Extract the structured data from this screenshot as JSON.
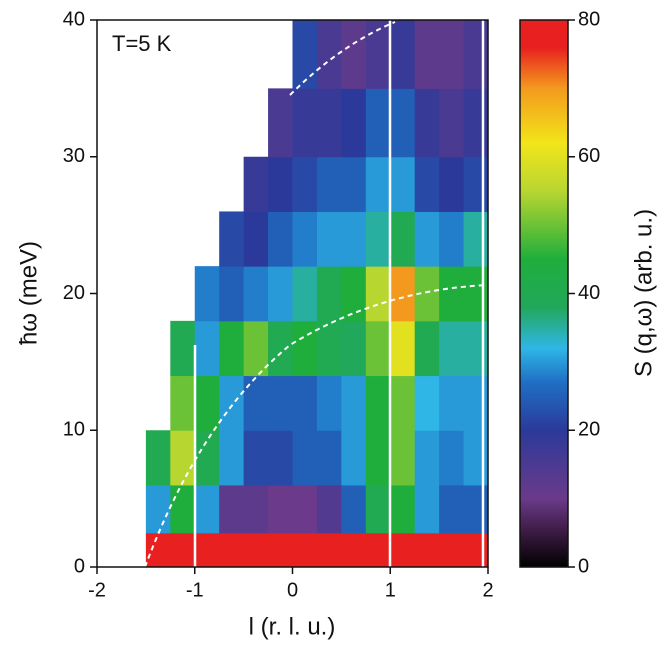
{
  "chart_data": {
    "type": "heatmap",
    "annotation": "T=5 K",
    "x_label": "l (r. l. u.)",
    "y_label": "ħω (meV)",
    "colorbar_label": "S (q,ω) (arb. u.)",
    "xlim": [
      -2,
      2
    ],
    "xticks": [
      -2,
      -1,
      0,
      1,
      2
    ],
    "ylim": [
      0,
      40
    ],
    "yticks": [
      0,
      10,
      20,
      30,
      40
    ],
    "clim": [
      0,
      80
    ],
    "cticks": [
      0,
      20,
      40,
      60,
      80
    ],
    "colorscale": [
      [
        0,
        "#000000"
      ],
      [
        5,
        "#3a1a40"
      ],
      [
        10,
        "#6b3a8a"
      ],
      [
        20,
        "#2b3a9a"
      ],
      [
        27,
        "#1f6fc4"
      ],
      [
        32,
        "#2fb6e6"
      ],
      [
        38,
        "#22a85a"
      ],
      [
        45,
        "#1fae3c"
      ],
      [
        55,
        "#b8d630"
      ],
      [
        62,
        "#f2e51a"
      ],
      [
        70,
        "#f39a1e"
      ],
      [
        76,
        "#e8201f"
      ],
      [
        80,
        "#e8201f"
      ]
    ],
    "xbins": [
      -1.75,
      -1.5,
      -1.25,
      -1,
      -0.75,
      -0.5,
      -0.25,
      0,
      0.25,
      0.5,
      0.75,
      1,
      1.25,
      1.5,
      1.75,
      2
    ],
    "ybins": [
      0,
      2.5,
      6,
      10,
      14,
      18,
      22,
      26,
      30,
      35,
      40
    ],
    "z": [
      [
        null,
        80,
        80,
        80,
        80,
        80,
        80,
        80,
        80,
        80,
        80,
        80,
        80,
        80,
        80
      ],
      [
        null,
        30,
        45,
        30,
        12,
        12,
        10,
        10,
        14,
        25,
        40,
        45,
        30,
        25,
        25
      ],
      [
        null,
        40,
        55,
        40,
        30,
        22,
        22,
        25,
        25,
        30,
        45,
        50,
        30,
        28,
        30
      ],
      [
        null,
        null,
        50,
        45,
        30,
        25,
        25,
        25,
        28,
        30,
        45,
        50,
        32,
        30,
        30
      ],
      [
        null,
        null,
        40,
        30,
        45,
        50,
        40,
        45,
        40,
        38,
        50,
        60,
        40,
        35,
        35
      ],
      [
        null,
        null,
        null,
        28,
        25,
        28,
        30,
        35,
        40,
        45,
        55,
        70,
        50,
        45,
        45
      ],
      [
        null,
        null,
        null,
        null,
        22,
        20,
        25,
        28,
        30,
        30,
        35,
        40,
        30,
        28,
        35
      ],
      [
        null,
        null,
        null,
        null,
        null,
        18,
        20,
        22,
        25,
        25,
        30,
        30,
        22,
        20,
        22
      ],
      [
        null,
        null,
        null,
        null,
        null,
        null,
        15,
        18,
        18,
        20,
        25,
        25,
        18,
        15,
        18
      ],
      [
        null,
        null,
        null,
        null,
        null,
        null,
        null,
        22,
        15,
        12,
        15,
        18,
        12,
        12,
        15
      ]
    ]
  }
}
